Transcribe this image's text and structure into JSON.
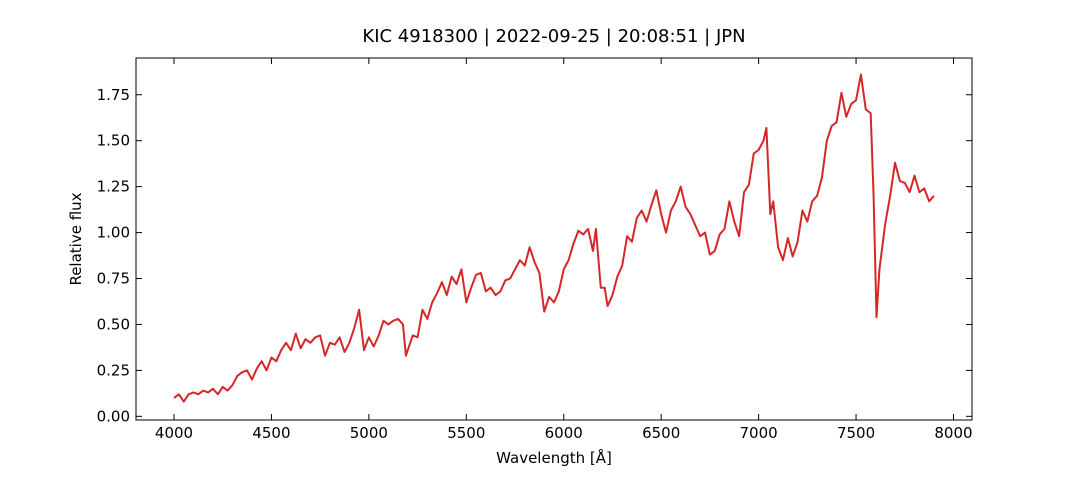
{
  "chart_data": {
    "type": "line",
    "title": "KIC 4918300 | 2022-09-25 | 20:08:51 | JPN",
    "x_label": "Wavelength [Å]",
    "y_label": "Relative flux",
    "xlim": [
      3805,
      8095
    ],
    "ylim": [
      -0.02,
      1.95
    ],
    "xticks": [
      4000,
      4500,
      5000,
      5500,
      6000,
      6500,
      7000,
      7500,
      8000
    ],
    "yticks": [
      {
        "value": 0,
        "label": "0.00"
      },
      {
        "value": 0.25,
        "label": "0.25"
      },
      {
        "value": 0.5,
        "label": "0.50"
      },
      {
        "value": 0.75,
        "label": "0.75"
      },
      {
        "value": 1,
        "label": "1.00"
      },
      {
        "value": 1.25,
        "label": "1.25"
      },
      {
        "value": 1.5,
        "label": "1.50"
      },
      {
        "value": 1.75,
        "label": "1.75"
      }
    ],
    "x": [
      4000,
      4025,
      4050,
      4075,
      4100,
      4125,
      4150,
      4175,
      4200,
      4225,
      4250,
      4275,
      4300,
      4325,
      4350,
      4375,
      4400,
      4425,
      4450,
      4475,
      4500,
      4525,
      4550,
      4575,
      4600,
      4625,
      4650,
      4675,
      4700,
      4725,
      4750,
      4775,
      4800,
      4825,
      4850,
      4875,
      4900,
      4925,
      4950,
      4975,
      5000,
      5025,
      5050,
      5075,
      5100,
      5125,
      5150,
      5175,
      5190,
      5225,
      5250,
      5275,
      5300,
      5325,
      5350,
      5375,
      5400,
      5425,
      5450,
      5475,
      5500,
      5525,
      5550,
      5575,
      5600,
      5625,
      5650,
      5675,
      5700,
      5725,
      5750,
      5775,
      5800,
      5825,
      5850,
      5875,
      5900,
      5925,
      5950,
      5975,
      6000,
      6025,
      6050,
      6075,
      6100,
      6125,
      6150,
      6165,
      6190,
      6210,
      6225,
      6250,
      6275,
      6300,
      6325,
      6350,
      6375,
      6400,
      6425,
      6450,
      6475,
      6500,
      6525,
      6550,
      6575,
      6600,
      6625,
      6650,
      6675,
      6700,
      6725,
      6750,
      6775,
      6800,
      6825,
      6850,
      6875,
      6900,
      6925,
      6950,
      6975,
      7000,
      7025,
      7040,
      7060,
      7075,
      7100,
      7125,
      7150,
      7175,
      7200,
      7225,
      7250,
      7275,
      7300,
      7325,
      7350,
      7375,
      7400,
      7425,
      7450,
      7475,
      7500,
      7525,
      7550,
      7575,
      7590,
      7605,
      7620,
      7650,
      7675,
      7700,
      7725,
      7750,
      7775,
      7800,
      7825,
      7850,
      7875,
      7900
    ],
    "series": [
      {
        "name": "flux",
        "color": "#d62728",
        "values": [
          0.1,
          0.12,
          0.08,
          0.12,
          0.13,
          0.12,
          0.14,
          0.13,
          0.15,
          0.12,
          0.16,
          0.14,
          0.17,
          0.22,
          0.24,
          0.25,
          0.2,
          0.26,
          0.3,
          0.25,
          0.32,
          0.3,
          0.36,
          0.4,
          0.36,
          0.45,
          0.37,
          0.42,
          0.4,
          0.43,
          0.44,
          0.33,
          0.4,
          0.39,
          0.43,
          0.35,
          0.4,
          0.48,
          0.58,
          0.36,
          0.43,
          0.38,
          0.44,
          0.52,
          0.5,
          0.52,
          0.53,
          0.5,
          0.33,
          0.44,
          0.43,
          0.58,
          0.53,
          0.62,
          0.67,
          0.73,
          0.66,
          0.76,
          0.72,
          0.8,
          0.62,
          0.7,
          0.77,
          0.78,
          0.68,
          0.7,
          0.66,
          0.68,
          0.74,
          0.75,
          0.8,
          0.85,
          0.82,
          0.92,
          0.84,
          0.78,
          0.57,
          0.65,
          0.62,
          0.68,
          0.8,
          0.85,
          0.94,
          1.01,
          0.99,
          1.02,
          0.9,
          1.02,
          0.7,
          0.7,
          0.6,
          0.66,
          0.76,
          0.82,
          0.98,
          0.95,
          1.08,
          1.12,
          1.06,
          1.15,
          1.23,
          1.1,
          1.0,
          1.12,
          1.17,
          1.25,
          1.14,
          1.1,
          1.04,
          0.98,
          1.0,
          0.88,
          0.9,
          0.99,
          1.02,
          1.17,
          1.06,
          0.98,
          1.22,
          1.26,
          1.43,
          1.45,
          1.5,
          1.57,
          1.1,
          1.17,
          0.92,
          0.85,
          0.97,
          0.87,
          0.95,
          1.12,
          1.06,
          1.17,
          1.2,
          1.3,
          1.5,
          1.58,
          1.6,
          1.76,
          1.63,
          1.7,
          1.72,
          1.86,
          1.67,
          1.65,
          1.2,
          0.54,
          0.8,
          1.05,
          1.2,
          1.38,
          1.28,
          1.27,
          1.22,
          1.31,
          1.22,
          1.24,
          1.17,
          1.2
        ]
      }
    ]
  }
}
